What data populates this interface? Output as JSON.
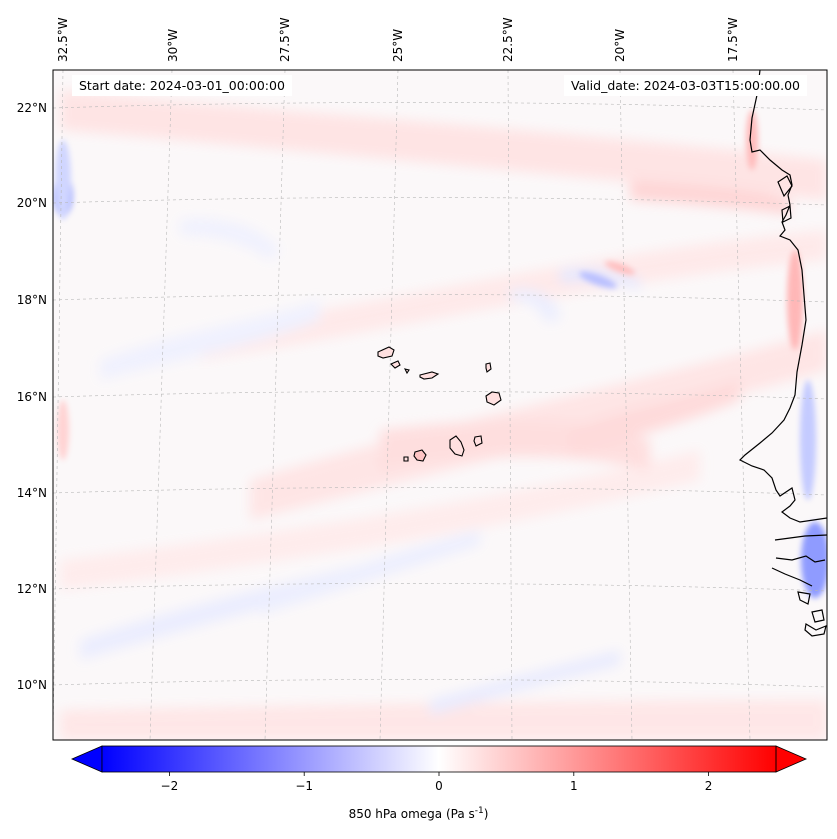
{
  "map": {
    "field": "850 hPa omega",
    "units": "Pa s",
    "units_exponent": "-1",
    "start_date_label": "Start date: 2024-03-01_00:00:00",
    "valid_date_label": "Valid_date: 2024-03-03T15:00:00.00",
    "extent": {
      "lon_min": -33.0,
      "lon_max": -15.8,
      "lat_min": 8.9,
      "lat_max": 22.8
    },
    "lon_ticks": [
      "32.5°W",
      "30°W",
      "27.5°W",
      "25°W",
      "22.5°W",
      "20°W",
      "17.5°W"
    ],
    "lon_tick_values": [
      -32.5,
      -30,
      -27.5,
      -25,
      -22.5,
      -20,
      -17.5
    ],
    "lat_ticks": [
      "22°N",
      "20°N",
      "18°N",
      "16°N",
      "14°N",
      "12°N",
      "10°N"
    ],
    "lat_tick_values": [
      22,
      20,
      18,
      16,
      14,
      12,
      10
    ],
    "features": [
      "Cape Verde Islands",
      "West African coastline"
    ]
  },
  "colorbar": {
    "cmap": "bwr",
    "vmin": -2.5,
    "vmax": 2.5,
    "extend": "both",
    "ticks": [
      "−2",
      "−1",
      "0",
      "1",
      "2"
    ],
    "tick_values": [
      -2,
      -1,
      0,
      1,
      2
    ],
    "colors": {
      "low": "#0000ff",
      "mid": "#ffffff",
      "high": "#ff0000"
    }
  }
}
